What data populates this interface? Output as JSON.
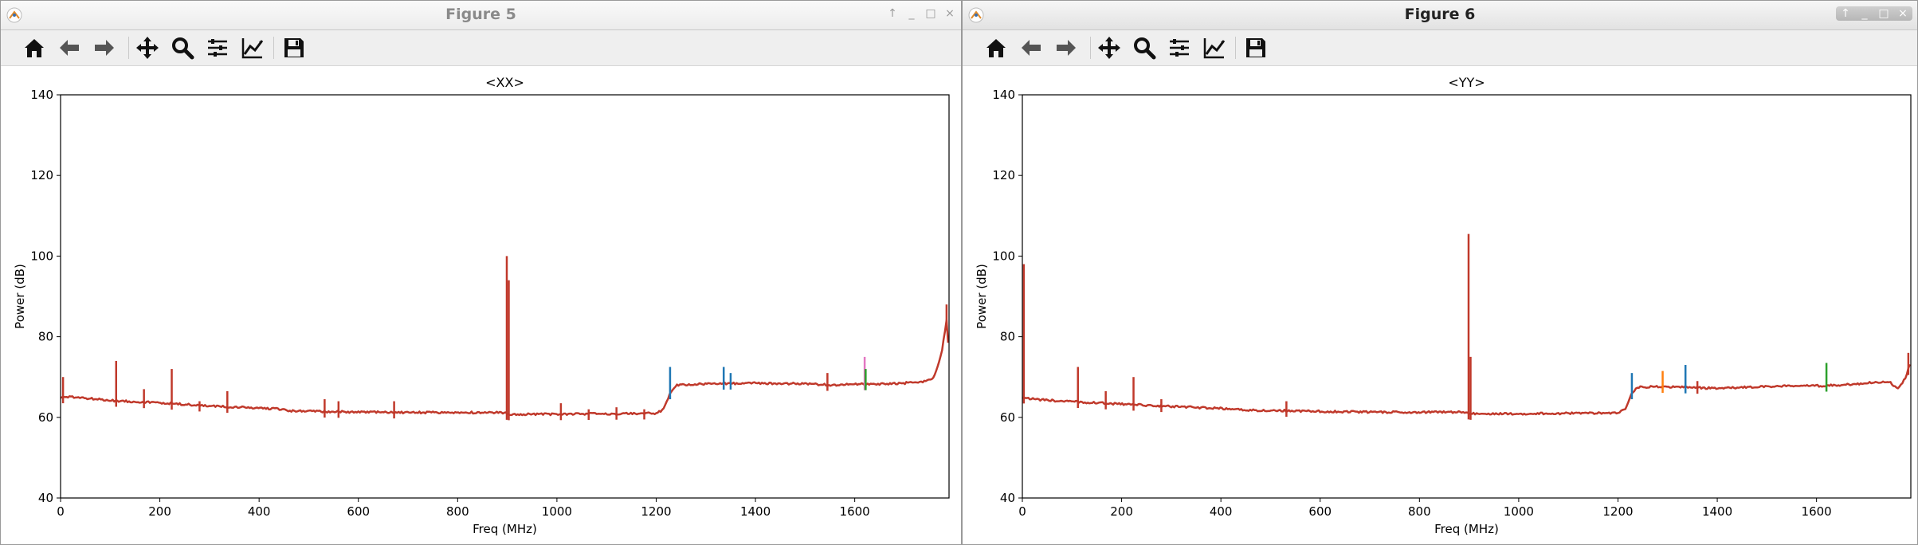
{
  "windows": [
    {
      "title": "Figure 5",
      "active": false,
      "toolbar": [
        "home-icon",
        "back-icon",
        "forward-icon",
        "pan-icon",
        "zoom-icon",
        "subplots-icon",
        "customize-icon",
        "save-icon"
      ],
      "window_controls": [
        "↑",
        "_",
        "□",
        "×"
      ]
    },
    {
      "title": "Figure 6",
      "active": true,
      "toolbar": [
        "home-icon",
        "back-icon",
        "forward-icon",
        "pan-icon",
        "zoom-icon",
        "subplots-icon",
        "customize-icon",
        "save-icon"
      ],
      "window_controls": [
        "↑",
        "_",
        "□",
        "×"
      ]
    }
  ],
  "colors": {
    "main": "#c0392b",
    "blue": "#1f77b4",
    "green": "#2ca02c",
    "orange": "#ff7f0e",
    "pink": "#e377c2",
    "purple": "#9467bd"
  },
  "chart_data": [
    {
      "type": "line",
      "title": "<XX>",
      "xlabel": "Freq (MHz)",
      "ylabel": "Power (dB)",
      "xlim": [
        0,
        1790
      ],
      "ylim": [
        40,
        140
      ],
      "xticks": [
        0,
        200,
        400,
        600,
        800,
        1000,
        1200,
        1400,
        1600
      ],
      "yticks": [
        40,
        60,
        80,
        100,
        120,
        140
      ],
      "grid": false,
      "baseline": [
        [
          0,
          65
        ],
        [
          30,
          65
        ],
        [
          100,
          64.2
        ],
        [
          200,
          63.6
        ],
        [
          300,
          62.8
        ],
        [
          400,
          62.3
        ],
        [
          450,
          62
        ],
        [
          460,
          61.6
        ],
        [
          600,
          61.3
        ],
        [
          700,
          61.2
        ],
        [
          895,
          61.2
        ],
        [
          900,
          60.8
        ],
        [
          1000,
          60.8
        ],
        [
          1100,
          60.9
        ],
        [
          1200,
          61
        ],
        [
          1215,
          62
        ],
        [
          1228,
          66
        ],
        [
          1240,
          68
        ],
        [
          1300,
          68.3
        ],
        [
          1400,
          68.5
        ],
        [
          1500,
          68.3
        ],
        [
          1560,
          68
        ],
        [
          1600,
          68.2
        ],
        [
          1650,
          68.3
        ],
        [
          1700,
          68.5
        ],
        [
          1745,
          69
        ],
        [
          1760,
          70
        ],
        [
          1775,
          76
        ],
        [
          1785,
          84
        ],
        [
          1790,
          75
        ]
      ],
      "spikes": [
        {
          "x": 5,
          "y": 70,
          "series": "main"
        },
        {
          "x": 112,
          "y": 74,
          "series": "main"
        },
        {
          "x": 168,
          "y": 67,
          "series": "main"
        },
        {
          "x": 224,
          "y": 72,
          "series": "main"
        },
        {
          "x": 280,
          "y": 64,
          "series": "main"
        },
        {
          "x": 336,
          "y": 66.5,
          "series": "main"
        },
        {
          "x": 532,
          "y": 64.5,
          "series": "main"
        },
        {
          "x": 560,
          "y": 64,
          "series": "main"
        },
        {
          "x": 672,
          "y": 64,
          "series": "main"
        },
        {
          "x": 899,
          "y": 100,
          "series": "main"
        },
        {
          "x": 903,
          "y": 94,
          "series": "main"
        },
        {
          "x": 1008,
          "y": 63.5,
          "series": "main"
        },
        {
          "x": 1064,
          "y": 62,
          "series": "main"
        },
        {
          "x": 1120,
          "y": 62.5,
          "series": "main"
        },
        {
          "x": 1176,
          "y": 62,
          "series": "main"
        },
        {
          "x": 1228,
          "y": 72.5,
          "series": "blue"
        },
        {
          "x": 1336,
          "y": 72.5,
          "series": "blue"
        },
        {
          "x": 1350,
          "y": 71,
          "series": "blue"
        },
        {
          "x": 1545,
          "y": 71,
          "series": "main"
        },
        {
          "x": 1620,
          "y": 75,
          "series": "pink"
        },
        {
          "x": 1622,
          "y": 72,
          "series": "green"
        },
        {
          "x": 1785,
          "y": 88,
          "series": "main"
        }
      ]
    },
    {
      "type": "line",
      "title": "<YY>",
      "xlabel": "Freq (MHz)",
      "ylabel": "Power (dB)",
      "xlim": [
        0,
        1790
      ],
      "ylim": [
        40,
        140
      ],
      "xticks": [
        0,
        200,
        400,
        600,
        800,
        1000,
        1200,
        1400,
        1600
      ],
      "yticks": [
        40,
        60,
        80,
        100,
        120,
        140
      ],
      "grid": false,
      "baseline": [
        [
          0,
          65
        ],
        [
          30,
          64.4
        ],
        [
          100,
          63.9
        ],
        [
          200,
          63.3
        ],
        [
          300,
          62.7
        ],
        [
          400,
          62.2
        ],
        [
          450,
          61.8
        ],
        [
          600,
          61.5
        ],
        [
          700,
          61.3
        ],
        [
          895,
          61.3
        ],
        [
          900,
          60.9
        ],
        [
          1000,
          60.9
        ],
        [
          1100,
          61
        ],
        [
          1200,
          61.1
        ],
        [
          1215,
          62
        ],
        [
          1228,
          66
        ],
        [
          1240,
          67.5
        ],
        [
          1300,
          67.6
        ],
        [
          1400,
          67.2
        ],
        [
          1500,
          67.6
        ],
        [
          1560,
          67.9
        ],
        [
          1600,
          67.8
        ],
        [
          1650,
          68
        ],
        [
          1700,
          68.5
        ],
        [
          1745,
          69
        ],
        [
          1765,
          67
        ],
        [
          1780,
          70
        ],
        [
          1790,
          74
        ]
      ],
      "spikes": [
        {
          "x": 3,
          "y": 98,
          "series": "main"
        },
        {
          "x": 112,
          "y": 72.5,
          "series": "main"
        },
        {
          "x": 168,
          "y": 66.5,
          "series": "main"
        },
        {
          "x": 224,
          "y": 70,
          "series": "main"
        },
        {
          "x": 280,
          "y": 64.5,
          "series": "main"
        },
        {
          "x": 532,
          "y": 64,
          "series": "main"
        },
        {
          "x": 899,
          "y": 105.5,
          "series": "main"
        },
        {
          "x": 903,
          "y": 75,
          "series": "main"
        },
        {
          "x": 1228,
          "y": 71,
          "series": "blue"
        },
        {
          "x": 1290,
          "y": 71.5,
          "series": "orange"
        },
        {
          "x": 1336,
          "y": 73,
          "series": "blue"
        },
        {
          "x": 1360,
          "y": 69,
          "series": "main"
        },
        {
          "x": 1620,
          "y": 73.5,
          "series": "green"
        },
        {
          "x": 1785,
          "y": 76,
          "series": "main"
        }
      ]
    }
  ]
}
